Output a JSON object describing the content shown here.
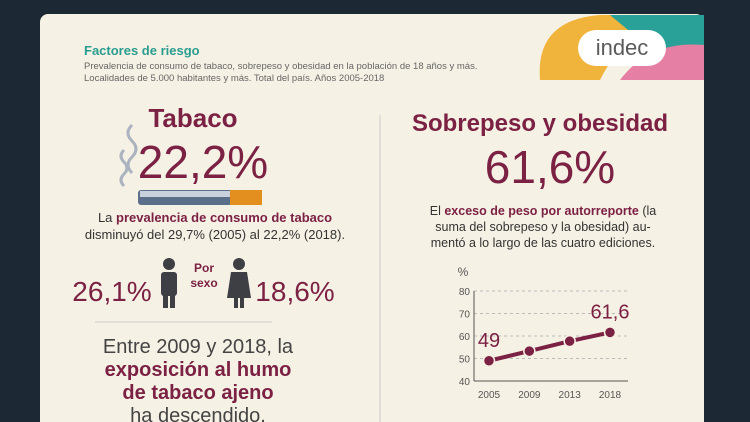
{
  "header": {
    "title": "Factores de riesgo",
    "subtitle_lines": [
      "Prevalencia de consumo de tabaco, sobrepeso y obesidad en la población de 18 años y más.",
      "Localidades de 5.000 habitantes y más. Total del país. Años 2005-2018"
    ],
    "logo": "indec"
  },
  "tabaco": {
    "title": "Tabaco",
    "value": "22,2%",
    "description": {
      "line1_start": "La ",
      "line1_bold": "prevalencia de consumo de tabaco",
      "line2": "disminuyó del 29,7% (2005) al 22,2% (2018)."
    },
    "by_sex": {
      "male": "26,1%",
      "label_lines": [
        "Por",
        "sexo"
      ],
      "female": "18,6%"
    },
    "exposure": {
      "line1": "Entre 2009 y 2018, la",
      "line2_bold": "exposición al humo",
      "line3_bold": "de tabaco ajeno",
      "line4": "ha descendido."
    }
  },
  "sobrepeso": {
    "title": "Sobrepeso y obesidad",
    "value": "61,6%",
    "description": {
      "line1_start": "El ",
      "line1_bold": "exceso de peso por autorreporte",
      "line1_end": " (la",
      "line2": "suma del sobrepeso y la obesidad) au-",
      "line3": "mentó a lo largo de las cuatro ediciones."
    }
  },
  "chart_data": {
    "type": "line",
    "y_label": "%",
    "categories": [
      "2005",
      "2009",
      "2013",
      "2018"
    ],
    "values": [
      49,
      53.3,
      57.7,
      61.6
    ],
    "value_labels": [
      "49",
      null,
      null,
      "61,6"
    ],
    "color": "#7b2144",
    "ylim": [
      40,
      80
    ],
    "yticks": [
      40,
      50,
      60,
      70,
      80
    ],
    "grid": true
  }
}
